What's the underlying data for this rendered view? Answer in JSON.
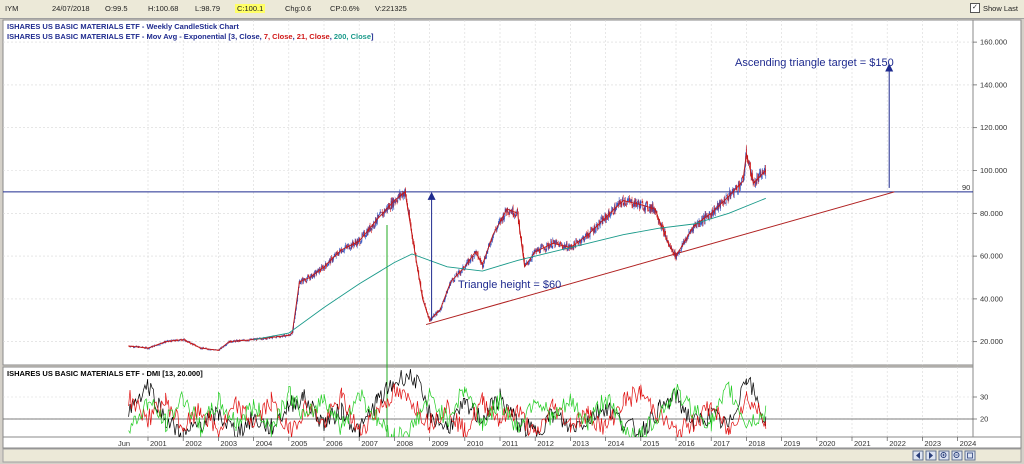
{
  "infobar": {
    "symbol": "IYM",
    "date": "24/07/2018",
    "open": "O:99.5",
    "high": "H:100.68",
    "low": "L:98.79",
    "close": "C:100.1",
    "chg": "Chg:0.6",
    "cp": "CP:0.6%",
    "vol": "V:221325",
    "show_last": "Show Last",
    "show_last_checked": true
  },
  "chart_data": [
    {
      "type": "candlestick",
      "title": "ISHARES US BASIC MATERIALS ETF - Weekly CandleStick Chart",
      "subtitle_prefix": "ISHARES US BASIC MATERIALS ETF - Mov Avg - Exponential [",
      "subtitle_parts": [
        {
          "text": "3, Close",
          "color": "#1f2b8f"
        },
        {
          "text": ", ",
          "color": "#1f2b8f"
        },
        {
          "text": "7, Close",
          "color": "#d01818"
        },
        {
          "text": ", ",
          "color": "#1f2b8f"
        },
        {
          "text": "21, Close",
          "color": "#d01818"
        },
        {
          "text": ", ",
          "color": "#1f2b8f"
        },
        {
          "text": "200, Close",
          "color": "#1a9a8a"
        },
        {
          "text": "]",
          "color": "#1f2b8f"
        }
      ],
      "x_ticks": [
        "Jun",
        "2001",
        "2002",
        "2003",
        "2004",
        "2005",
        "2006",
        "2007",
        "2008",
        "2009",
        "2010",
        "2011",
        "2012",
        "2013",
        "2014",
        "2015",
        "2016",
        "2017",
        "2018",
        "2019",
        "2020",
        "2021",
        "2022",
        "2023",
        "2024"
      ],
      "y_ticks": [
        "20.000",
        "40.000",
        "60.000",
        "80.000",
        "100.000",
        "120.000",
        "140.000",
        "160.000"
      ],
      "ylim": [
        10,
        167
      ],
      "price": {
        "x": [
          2000.45,
          2001.0,
          2001.5,
          2002.0,
          2002.5,
          2003.0,
          2003.3,
          2004.0,
          2004.5,
          2005.0,
          2005.1,
          2005.3,
          2005.6,
          2006.0,
          2006.5,
          2007.0,
          2007.5,
          2008.0,
          2008.3,
          2008.5,
          2008.8,
          2009.0,
          2009.3,
          2009.6,
          2010.0,
          2010.3,
          2010.5,
          2010.8,
          2011.2,
          2011.5,
          2011.7,
          2012.0,
          2012.5,
          2013.0,
          2013.5,
          2014.0,
          2014.5,
          2015.0,
          2015.4,
          2015.8,
          2016.0,
          2016.5,
          2017.0,
          2017.5,
          2017.9,
          2018.0,
          2018.2,
          2018.55
        ],
        "y": [
          18,
          17,
          20,
          21,
          17,
          16,
          20,
          21,
          22,
          23,
          24,
          48,
          50,
          55,
          63,
          67,
          77,
          86,
          90,
          70,
          40,
          30,
          35,
          48,
          55,
          62,
          56,
          70,
          82,
          80,
          55,
          62,
          66,
          64,
          70,
          78,
          86,
          84,
          82,
          65,
          60,
          74,
          80,
          88,
          95,
          108,
          94,
          100
        ]
      },
      "ema200": {
        "x": [
          2004.0,
          2005.0,
          2006.0,
          2007.0,
          2008.0,
          2008.5,
          2009.5,
          2010.5,
          2011.5,
          2012.5,
          2013.5,
          2014.5,
          2015.5,
          2016.5,
          2017.5,
          2018.55
        ],
        "y": [
          21,
          24,
          36,
          47,
          57,
          61,
          55,
          53,
          58,
          62,
          66,
          70,
          73,
          75,
          80,
          87
        ]
      },
      "resistance_line": {
        "y": 90,
        "label": "90"
      },
      "support_line": {
        "x": [
          2008.9,
          2022.2
        ],
        "y": [
          28,
          90
        ]
      },
      "annotations": [
        {
          "text": "Ascending triangle target = $150"
        },
        {
          "text": "Triangle height = $60"
        }
      ],
      "height_arrow": {
        "x": 2009.0,
        "y_from": 30,
        "y_to": 90
      },
      "target_arrow": {
        "x": 2022.0,
        "y_from": 90,
        "y_to": 150
      }
    },
    {
      "type": "line",
      "title": "ISHARES US BASIC MATERIALS ETF - DMI [13, 20.000]",
      "y_ticks": [
        "20",
        "30"
      ],
      "ylim": [
        8,
        40
      ],
      "reference_line": 20,
      "series": [
        {
          "color": "#000000",
          "x": [
            2000.45,
            2001.0,
            2001.5,
            2002.0,
            2002.5,
            2003.0,
            2003.5,
            2004.0,
            2004.5,
            2005.0,
            2005.4,
            2006.0,
            2006.5,
            2007.0,
            2007.5,
            2008.0,
            2008.3,
            2008.6,
            2009.0,
            2009.5,
            2010.0,
            2010.5,
            2011.0,
            2011.5,
            2012.0,
            2012.5,
            2013.0,
            2013.5,
            2014.0,
            2014.5,
            2015.0,
            2015.5,
            2016.0,
            2016.5,
            2017.0,
            2017.5,
            2018.0,
            2018.55
          ],
          "y": [
            24,
            36,
            20,
            12,
            18,
            22,
            14,
            20,
            16,
            26,
            30,
            18,
            24,
            14,
            28,
            36,
            40,
            38,
            22,
            16,
            26,
            20,
            30,
            18,
            14,
            22,
            16,
            20,
            26,
            18,
            14,
            24,
            30,
            18,
            22,
            16,
            40,
            18
          ]
        },
        {
          "color": "#e01010",
          "x": [
            2000.45,
            2001.0,
            2001.5,
            2002.0,
            2002.5,
            2003.0,
            2003.5,
            2004.0,
            2004.5,
            2005.0,
            2005.5,
            2006.0,
            2006.5,
            2007.0,
            2007.5,
            2008.0,
            2008.5,
            2009.0,
            2009.5,
            2010.0,
            2010.5,
            2011.0,
            2011.5,
            2012.0,
            2012.5,
            2013.0,
            2013.5,
            2014.0,
            2014.5,
            2015.0,
            2015.5,
            2016.0,
            2016.5,
            2017.0,
            2017.5,
            2018.0,
            2018.55
          ],
          "y": [
            30,
            20,
            28,
            16,
            24,
            14,
            26,
            18,
            28,
            14,
            26,
            18,
            30,
            14,
            24,
            32,
            28,
            18,
            26,
            14,
            28,
            20,
            24,
            12,
            26,
            18,
            22,
            16,
            28,
            32,
            22,
            14,
            18,
            26,
            14,
            30,
            20
          ]
        },
        {
          "color": "#22cc22",
          "x": [
            2000.45,
            2001.0,
            2001.5,
            2002.0,
            2002.5,
            2003.0,
            2003.5,
            2004.0,
            2004.5,
            2005.0,
            2005.5,
            2006.0,
            2006.5,
            2007.0,
            2007.5,
            2008.0,
            2008.5,
            2009.0,
            2009.5,
            2010.0,
            2010.5,
            2011.0,
            2011.5,
            2012.0,
            2012.5,
            2013.0,
            2013.5,
            2014.0,
            2014.5,
            2015.0,
            2015.5,
            2016.0,
            2016.5,
            2017.0,
            2017.5,
            2018.0,
            2018.55
          ],
          "y": [
            14,
            28,
            18,
            30,
            16,
            28,
            18,
            26,
            16,
            32,
            20,
            30,
            16,
            32,
            20,
            12,
            16,
            30,
            20,
            34,
            18,
            28,
            16,
            30,
            20,
            28,
            18,
            30,
            16,
            12,
            22,
            32,
            24,
            18,
            34,
            18,
            22
          ]
        }
      ]
    }
  ],
  "nav_icons": [
    "scroll-left-icon",
    "scroll-right-icon",
    "zoom-in-icon",
    "zoom-out-icon",
    "zoom-fit-icon"
  ]
}
